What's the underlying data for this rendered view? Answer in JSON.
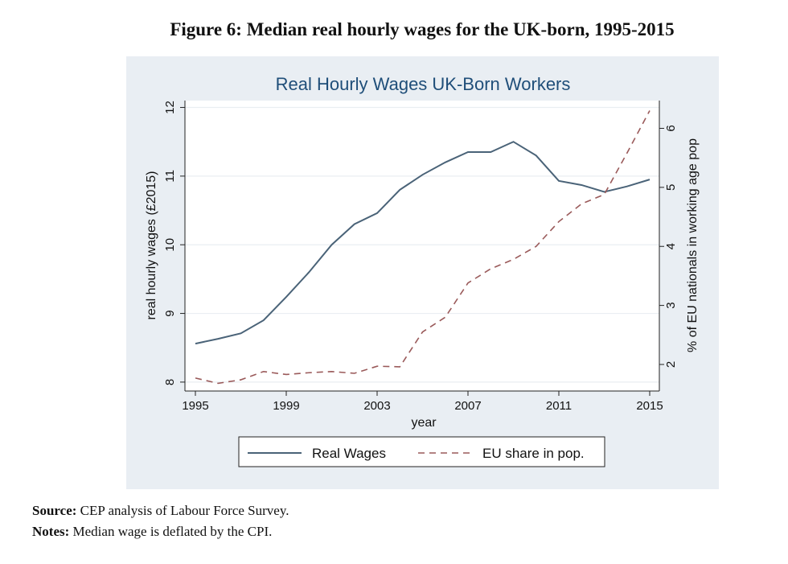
{
  "figure_title": "Figure 6: Median real hourly wages for the UK-born, 1995-2015",
  "source_label": "Source:",
  "source_text": "CEP analysis of Labour Force Survey.",
  "notes_label": "Notes:",
  "notes_text": "Median wage is deflated by the CPI.",
  "chart_data": {
    "type": "line",
    "title": "Real Hourly Wages UK-Born Workers",
    "xlabel": "year",
    "ylabel": "real hourly wages (£2015)",
    "y2label": "% of EU nationals in working age pop",
    "x": [
      1995,
      1996,
      1997,
      1998,
      1999,
      2000,
      2001,
      2002,
      2003,
      2004,
      2005,
      2006,
      2007,
      2008,
      2009,
      2010,
      2011,
      2012,
      2013,
      2014,
      2015
    ],
    "xticks": [
      "1995",
      "1999",
      "2003",
      "2007",
      "2011",
      "2015"
    ],
    "yticks": [
      "8",
      "9",
      "10",
      "11",
      "12"
    ],
    "y2ticks": [
      "2",
      "3",
      "4",
      "5",
      "6"
    ],
    "xlim": [
      1995,
      2015
    ],
    "ylim": [
      7.87,
      12.1
    ],
    "y2lim": [
      1.55,
      6.47
    ],
    "grid": true,
    "legend_position": "bottom",
    "series": [
      {
        "name": "Real Wages",
        "axis": "left",
        "style": "solid",
        "color": "#4a6378",
        "values": [
          8.56,
          8.63,
          8.71,
          8.9,
          9.24,
          9.6,
          10.0,
          10.3,
          10.46,
          10.8,
          11.02,
          11.2,
          11.35,
          11.35,
          11.5,
          11.3,
          10.93,
          10.87,
          10.77,
          10.85,
          10.95
        ]
      },
      {
        "name": "EU share in pop.",
        "axis": "right",
        "style": "dashed",
        "color": "#9a5a5a",
        "values": [
          1.77,
          1.68,
          1.74,
          1.88,
          1.83,
          1.86,
          1.88,
          1.85,
          1.97,
          1.96,
          2.55,
          2.8,
          3.38,
          3.62,
          3.78,
          4.0,
          4.42,
          4.72,
          4.88,
          5.58,
          6.3
        ]
      }
    ]
  }
}
